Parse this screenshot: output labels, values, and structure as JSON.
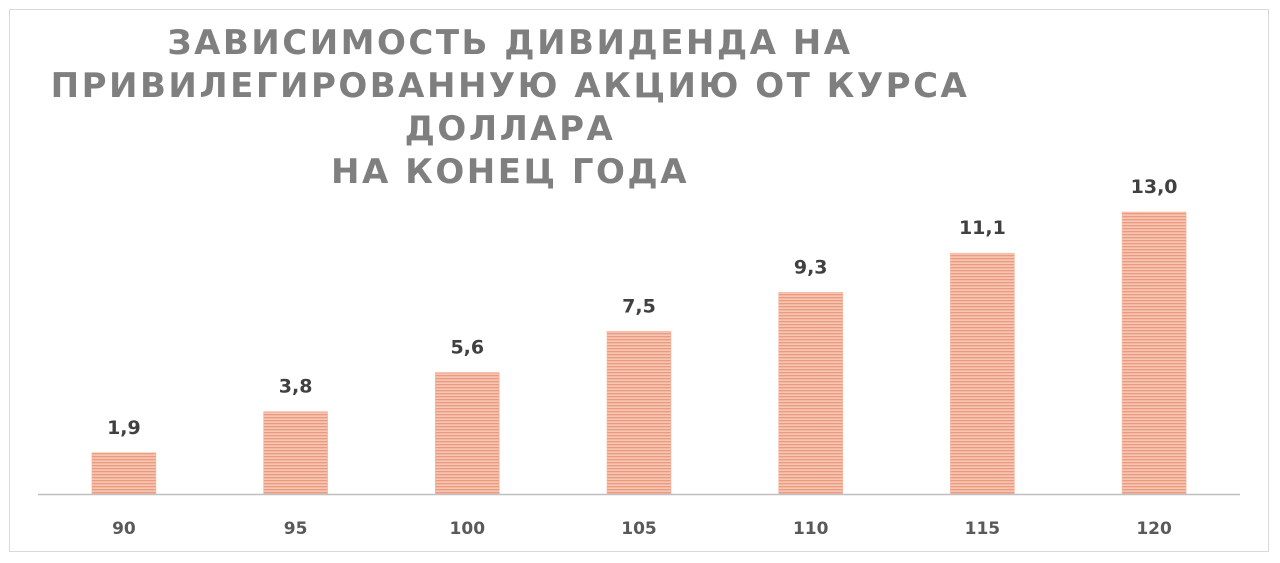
{
  "chart_data": {
    "type": "bar",
    "title_lines": [
      "ЗАВИСИМОСТЬ ДИВИДЕНДА НА",
      "ПРИВИЛЕГИРОВАННУЮ АКЦИЮ ОТ КУРСА ДОЛЛАРА",
      "НА КОНЕЦ ГОДА"
    ],
    "categories": [
      "90",
      "95",
      "100",
      "105",
      "110",
      "115",
      "120"
    ],
    "values": [
      1.9,
      3.8,
      5.6,
      7.5,
      9.3,
      11.1,
      13.0
    ],
    "value_labels": [
      "1,9",
      "3,8",
      "5,6",
      "7,5",
      "9,3",
      "11,1",
      "13,0"
    ],
    "xlabel": "",
    "ylabel": "",
    "ylim": [
      0,
      13.0
    ],
    "grid": false,
    "legend": "none",
    "colors": {
      "bar_fill": "#f4b8a3",
      "bar_stripe": "#ec9a7e",
      "axis": "#bfbfbf",
      "title": "#7f7f7f",
      "data_label": "#404040",
      "tick_label": "#595959"
    }
  }
}
